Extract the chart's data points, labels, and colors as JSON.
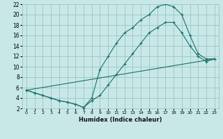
{
  "xlabel": "Humidex (Indice chaleur)",
  "bg_color": "#c8e8e8",
  "grid_color": "#a0c8c8",
  "line_color": "#1a6e6a",
  "xlim": [
    -0.5,
    23.5
  ],
  "ylim": [
    2,
    22
  ],
  "xticks": [
    0,
    1,
    2,
    3,
    4,
    5,
    6,
    7,
    8,
    9,
    10,
    11,
    12,
    13,
    14,
    15,
    16,
    17,
    18,
    19,
    20,
    21,
    22,
    23
  ],
  "yticks": [
    2,
    4,
    6,
    8,
    10,
    12,
    14,
    16,
    18,
    20,
    22
  ],
  "line1_x": [
    0,
    1,
    2,
    3,
    4,
    5,
    6,
    7,
    8,
    9,
    10,
    11,
    12,
    13,
    14,
    15,
    16,
    17,
    18,
    19,
    20,
    21,
    22,
    23
  ],
  "line1_y": [
    5.5,
    5.0,
    4.5,
    4.0,
    3.5,
    3.2,
    2.8,
    2.2,
    4.0,
    9.5,
    12.0,
    14.5,
    16.5,
    17.5,
    19.0,
    20.0,
    21.5,
    22.0,
    21.5,
    20.0,
    16.0,
    12.5,
    11.5,
    11.5
  ],
  "line2_x": [
    0,
    1,
    2,
    3,
    4,
    5,
    6,
    7,
    8,
    9,
    10,
    11,
    12,
    13,
    14,
    15,
    16,
    17,
    18,
    19,
    20,
    21,
    22,
    23
  ],
  "line2_y": [
    5.5,
    5.0,
    4.5,
    4.0,
    3.5,
    3.2,
    2.8,
    2.2,
    3.5,
    4.5,
    6.5,
    8.5,
    10.5,
    12.5,
    14.5,
    16.5,
    17.5,
    18.5,
    18.5,
    16.5,
    14.0,
    12.0,
    11.0,
    11.5
  ],
  "line3_x": [
    0,
    23
  ],
  "line3_y": [
    5.5,
    11.5
  ]
}
